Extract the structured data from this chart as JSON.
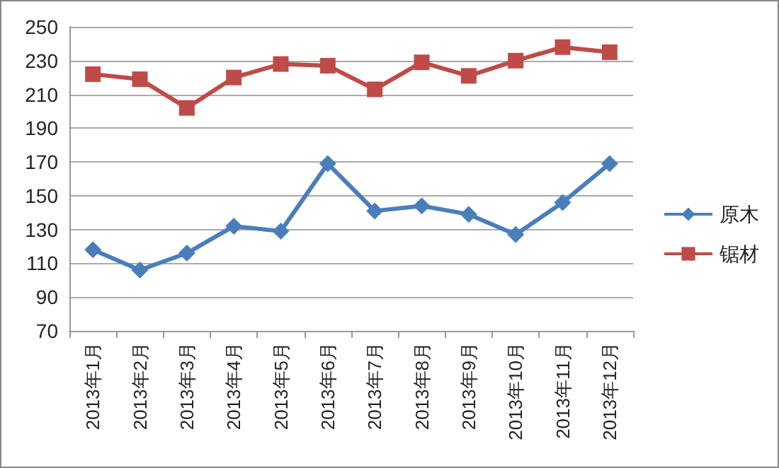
{
  "chart_data": {
    "type": "line",
    "categories": [
      "2013年1月",
      "2013年2月",
      "2013年3月",
      "2013年4月",
      "2013年5月",
      "2013年6月",
      "2013年7月",
      "2013年8月",
      "2013年9月",
      "2013年10月",
      "2013年11月",
      "2013年12月"
    ],
    "series": [
      {
        "name": "原木",
        "color": "#4a7ebb",
        "marker": "diamond",
        "values": [
          118,
          106,
          116,
          132,
          129,
          169,
          141,
          144,
          139,
          127,
          146,
          169
        ]
      },
      {
        "name": "锯材",
        "color": "#be4b48",
        "marker": "square",
        "values": [
          222,
          219,
          202,
          220,
          228,
          227,
          213,
          229,
          221,
          230,
          238,
          235
        ]
      }
    ],
    "ylim": [
      70,
      250
    ],
    "yticks": [
      70,
      90,
      110,
      130,
      150,
      170,
      190,
      210,
      230,
      250
    ],
    "grid": "y",
    "legend": "right",
    "line_style": "solid"
  }
}
